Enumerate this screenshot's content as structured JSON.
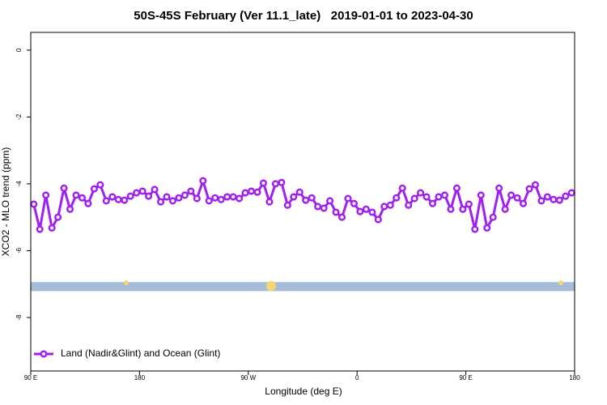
{
  "chart_data": {
    "type": "line",
    "title": "50S-45S February (Ver 11.1_late)   2019-01-01 to 2023-04-30",
    "xlabel": "Longitude (deg E)",
    "ylabel": "XCO2 - MLO trend (ppm)",
    "xlim": [
      90,
      540
    ],
    "xticks": [
      {
        "value": 90,
        "label": "90 E"
      },
      {
        "value": 180,
        "label": "180"
      },
      {
        "value": 270,
        "label": "90 W"
      },
      {
        "value": 360,
        "label": "0"
      },
      {
        "value": 450,
        "label": "90 E"
      },
      {
        "value": 540,
        "label": "180"
      }
    ],
    "ylim": [
      -9.6,
      0.53
    ],
    "yticks": [
      0,
      -2,
      -4,
      -6,
      -8
    ],
    "band": [
      -7.21,
      -6.94
    ],
    "band_color": "#a7bcd9",
    "legend": "lower left",
    "x": [
      92.5,
      97.5,
      102.5,
      107.5,
      112.5,
      117.5,
      122.5,
      127.5,
      132.5,
      137.5,
      142.5,
      147.5,
      152.5,
      157.5,
      162.5,
      167.5,
      172.5,
      177.5,
      182.5,
      187.5,
      192.5,
      197.5,
      202.5,
      207.5,
      212.5,
      217.5,
      222.5,
      227.5,
      232.5,
      237.5,
      242.5,
      247.5,
      252.5,
      257.5,
      262.5,
      267.5,
      272.5,
      277.5,
      282.5,
      287.5,
      292.5,
      297.5,
      302.5,
      307.5,
      312.5,
      317.5,
      322.5,
      327.5,
      332.5,
      337.5,
      342.5,
      347.5,
      352.5,
      357.5,
      362.5,
      367.5,
      372.5,
      377.5,
      382.5,
      387.5,
      392.5,
      397.5,
      402.5,
      407.5,
      412.5,
      417.5,
      422.5,
      427.5,
      432.5,
      437.5,
      442.5,
      447.5,
      452.5,
      457.5,
      462.5,
      467.5,
      472.5,
      477.5,
      482.5,
      487.5,
      492.5,
      497.5,
      502.5,
      507.5,
      512.5,
      517.5,
      522.5,
      527.5,
      532.5,
      537.5
    ],
    "series": [
      {
        "name": "Land (Nadir&Glint) and Ocean (Glint)",
        "color": "#a020f0",
        "values": [
          -4.61,
          -5.36,
          -4.34,
          -5.32,
          -5.0,
          -4.13,
          -4.76,
          -4.34,
          -4.42,
          -4.59,
          -4.15,
          -4.03,
          -4.51,
          -4.39,
          -4.47,
          -4.49,
          -4.37,
          -4.27,
          -4.22,
          -4.37,
          -4.17,
          -4.54,
          -4.39,
          -4.51,
          -4.42,
          -4.34,
          -4.22,
          -4.44,
          -3.91,
          -4.51,
          -4.42,
          -4.47,
          -4.39,
          -4.39,
          -4.44,
          -4.27,
          -4.22,
          -4.25,
          -3.98,
          -4.54,
          -4.0,
          -3.96,
          -4.64,
          -4.39,
          -4.25,
          -4.49,
          -4.42,
          -4.68,
          -4.73,
          -4.51,
          -4.85,
          -5.0,
          -4.44,
          -4.59,
          -4.83,
          -4.76,
          -4.85,
          -5.07,
          -4.68,
          -4.64,
          -4.42,
          -4.13,
          -4.64,
          -4.44,
          -4.27,
          -4.39,
          -4.59,
          -4.39,
          -4.34,
          -4.76,
          -4.13,
          -4.76,
          -4.61,
          -5.36,
          -4.34,
          -5.32,
          -5.0,
          -4.13,
          -4.76,
          -4.34,
          -4.42,
          -4.59,
          -4.15,
          -4.03,
          -4.51,
          -4.39,
          -4.47,
          -4.49,
          -4.37,
          -4.27
        ]
      }
    ]
  }
}
